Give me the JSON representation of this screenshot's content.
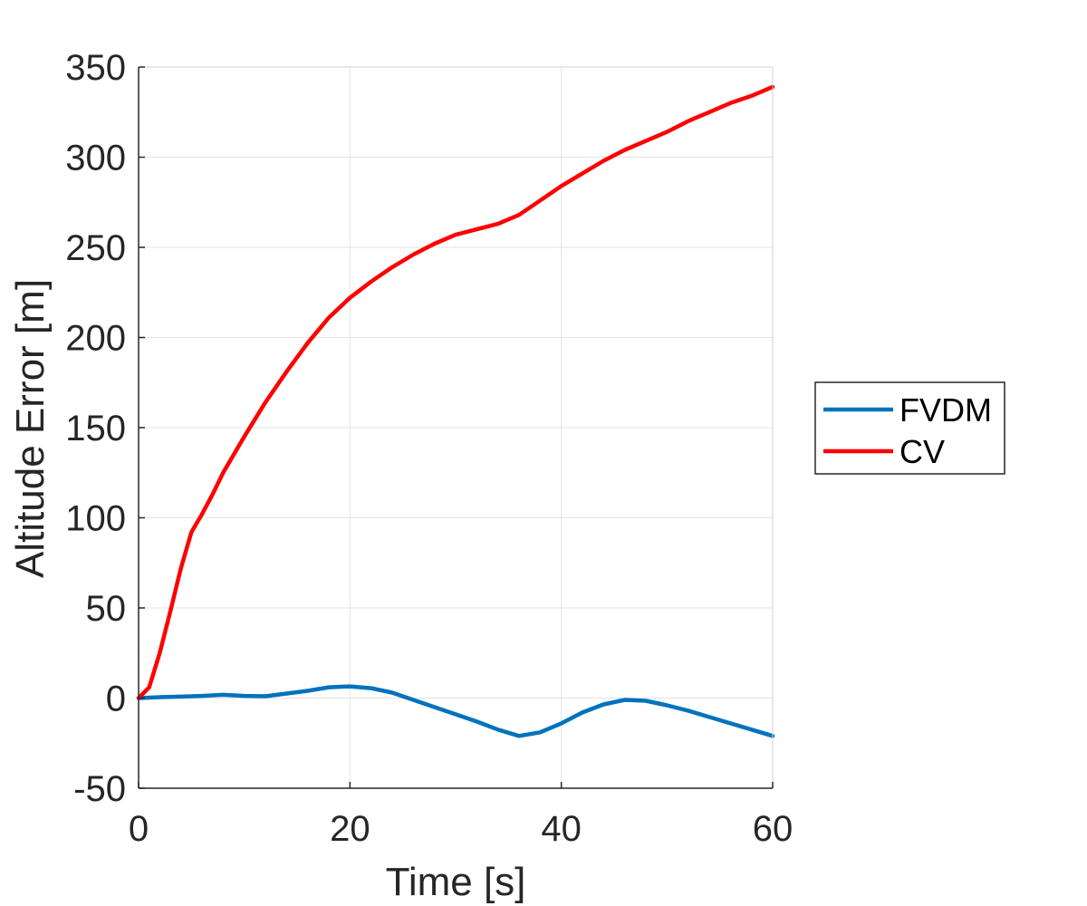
{
  "chart_data": {
    "type": "line",
    "title": "",
    "xlabel": "Time [s]",
    "ylabel": "Altitude Error [m]",
    "xlim": [
      0,
      60
    ],
    "ylim": [
      -50,
      350
    ],
    "xticks": [
      0,
      20,
      40,
      60
    ],
    "yticks": [
      -50,
      0,
      50,
      100,
      150,
      200,
      250,
      300,
      350
    ],
    "grid": true,
    "legend_position": "outside-right",
    "series": [
      {
        "name": "FVDM",
        "color": "#0072BD",
        "x": [
          0,
          2,
          4,
          6,
          8,
          10,
          12,
          14,
          16,
          18,
          20,
          22,
          24,
          26,
          28,
          30,
          32,
          34,
          36,
          38,
          40,
          42,
          44,
          46,
          48,
          50,
          52,
          54,
          56,
          58,
          60
        ],
        "y": [
          0,
          0.5,
          0.8,
          1.2,
          1.8,
          1.2,
          1.0,
          2.5,
          4.0,
          6.0,
          6.5,
          5.5,
          3.0,
          -1.0,
          -5.0,
          -9.0,
          -13.0,
          -17.5,
          -21.0,
          -19.0,
          -14.0,
          -8.0,
          -3.5,
          -1.0,
          -1.5,
          -4.0,
          -7.0,
          -10.5,
          -14.0,
          -17.5,
          -21.0
        ]
      },
      {
        "name": "CV",
        "color": "#FF0000",
        "x": [
          0,
          1,
          2,
          3,
          4,
          5,
          6,
          7,
          8,
          10,
          12,
          14,
          16,
          18,
          20,
          22,
          24,
          26,
          28,
          30,
          32,
          34,
          36,
          38,
          40,
          42,
          44,
          46,
          48,
          50,
          52,
          54,
          56,
          58,
          60
        ],
        "y": [
          0,
          6,
          25,
          48,
          72,
          92,
          102,
          113,
          125,
          145,
          164,
          181,
          197,
          211,
          222,
          231,
          239,
          246,
          252,
          257,
          260,
          263,
          268,
          276,
          284,
          291,
          298,
          304,
          309,
          314,
          320,
          325,
          330,
          334,
          339
        ]
      }
    ]
  }
}
